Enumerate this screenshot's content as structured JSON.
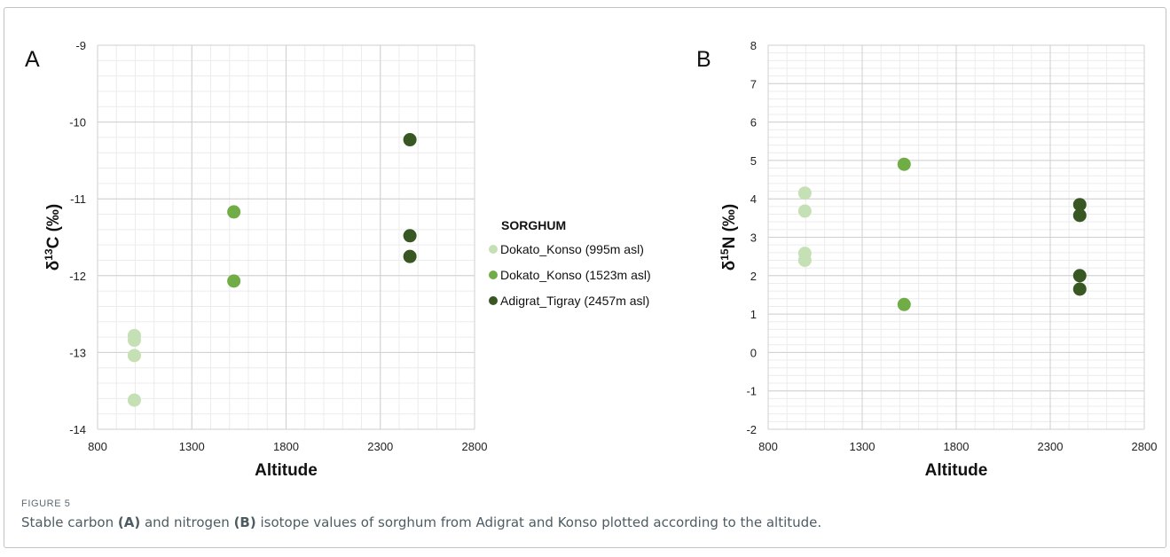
{
  "chart_data": [
    {
      "type": "scatter",
      "panel": "A",
      "xlabel": "Altitude",
      "ylabel_main": "δ",
      "ylabel_sup": "13",
      "ylabel_rest": "C (‰)",
      "xlim": [
        800,
        2800
      ],
      "ylim": [
        -14,
        -9
      ],
      "x_ticks": [
        "800",
        "1300",
        "1800",
        "2300",
        "2800"
      ],
      "y_ticks": [
        "-14",
        "-13",
        "-12",
        "-11",
        "-10",
        "-9"
      ],
      "grid": true,
      "series": [
        {
          "name": "Dokato_Konso (995m asl)",
          "color": "#c5e0b4",
          "points": [
            {
              "x": 995,
              "y": -12.78
            },
            {
              "x": 995,
              "y": -12.84
            },
            {
              "x": 995,
              "y": -13.04
            },
            {
              "x": 995,
              "y": -13.62
            }
          ]
        },
        {
          "name": "Dokato_Konso (1523m asl)",
          "color": "#70ad47",
          "points": [
            {
              "x": 1523,
              "y": -11.17
            },
            {
              "x": 1523,
              "y": -12.07
            }
          ]
        },
        {
          "name": "Adigrat_Tigray (2457m asl)",
          "color": "#385723",
          "points": [
            {
              "x": 2457,
              "y": -10.23
            },
            {
              "x": 2457,
              "y": -11.48
            },
            {
              "x": 2457,
              "y": -11.75
            }
          ]
        }
      ]
    },
    {
      "type": "scatter",
      "panel": "B",
      "xlabel": "Altitude",
      "ylabel_main": "δ",
      "ylabel_sup": "15",
      "ylabel_rest": "N (‰)",
      "xlim": [
        800,
        2800
      ],
      "ylim": [
        -2,
        8
      ],
      "x_ticks": [
        "800",
        "1300",
        "1800",
        "2300",
        "2800"
      ],
      "y_ticks": [
        "-2",
        "-1",
        "0",
        "1",
        "2",
        "3",
        "4",
        "5",
        "6",
        "7",
        "8"
      ],
      "grid": true,
      "series": [
        {
          "name": "Dokato_Konso (995m asl)",
          "color": "#c5e0b4",
          "points": [
            {
              "x": 995,
              "y": 4.15
            },
            {
              "x": 995,
              "y": 3.68
            },
            {
              "x": 995,
              "y": 2.58
            },
            {
              "x": 995,
              "y": 2.4
            }
          ]
        },
        {
          "name": "Dokato_Konso (1523m asl)",
          "color": "#70ad47",
          "points": [
            {
              "x": 1523,
              "y": 4.9
            },
            {
              "x": 1523,
              "y": 1.25
            }
          ]
        },
        {
          "name": "Adigrat_Tigray (2457m asl)",
          "color": "#385723",
          "points": [
            {
              "x": 2457,
              "y": 3.85
            },
            {
              "x": 2457,
              "y": 3.57
            },
            {
              "x": 2457,
              "y": 2.0
            },
            {
              "x": 2457,
              "y": 1.65
            }
          ]
        }
      ]
    }
  ],
  "legend": {
    "title": "SORGHUM",
    "items": [
      {
        "label": "Dokato_Konso (995m asl)",
        "color": "#c5e0b4"
      },
      {
        "label": "Dokato_Konso (1523m asl)",
        "color": "#70ad47"
      },
      {
        "label": "Adigrat_Tigray (2457m asl)",
        "color": "#385723"
      }
    ]
  },
  "caption": {
    "label": "FIGURE 5",
    "part1": "Stable carbon ",
    "bold1": "(A)",
    "part2": " and nitrogen ",
    "bold2": "(B)",
    "part3": " isotope values of sorghum from Adigrat and Konso plotted according to the altitude."
  }
}
